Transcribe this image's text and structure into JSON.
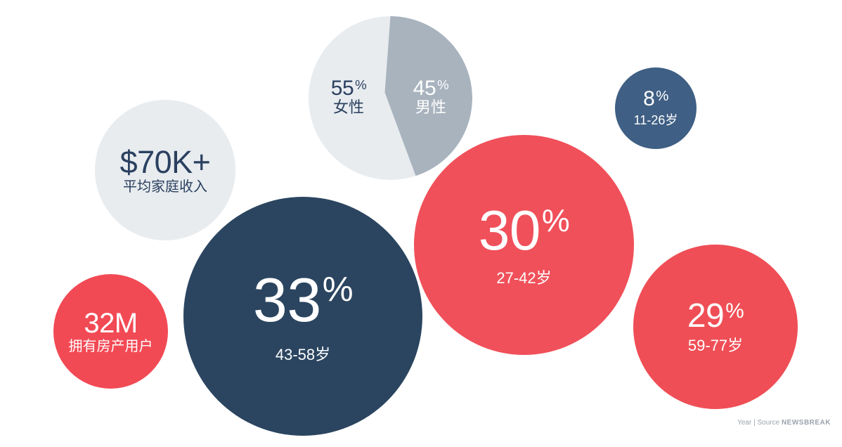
{
  "colors": {
    "light_gray": "#e8ecef",
    "gray_slice": "#a8b3be",
    "navy": "#2b4560",
    "steel_blue": "#3f5f84",
    "coral_red": "#f0505a"
  },
  "bubbles": {
    "income": {
      "value": "$70K+",
      "label": "平均家庭收入"
    },
    "gender": {
      "female": {
        "value": "55",
        "pct": "%",
        "label": "女性"
      },
      "male": {
        "value": "45",
        "pct": "%",
        "label": "男性"
      }
    },
    "age_11_26": {
      "value": "8",
      "pct": "%",
      "label": "11-26岁"
    },
    "age_27_42": {
      "value": "30",
      "pct": "%",
      "label": "27-42岁"
    },
    "age_43_58": {
      "value": "33",
      "pct": "%",
      "label": "43-58岁"
    },
    "homeowners": {
      "value": "32M",
      "label": "拥有房产用户"
    },
    "age_59_77": {
      "value": "29",
      "pct": "%",
      "label": "59-77岁"
    }
  },
  "footer": {
    "prefix": "Year",
    "separator": "|",
    "source_label": "Source",
    "brand": "NEWSBREAK"
  }
}
